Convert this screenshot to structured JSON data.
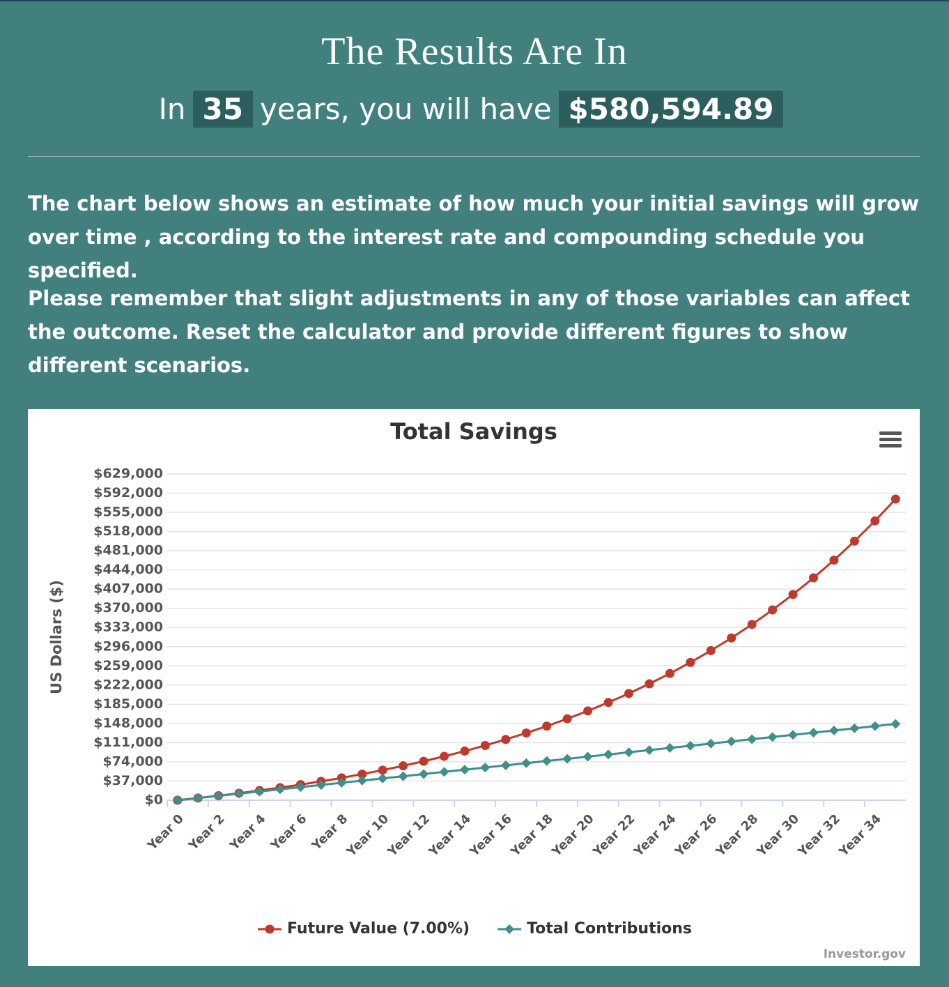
{
  "header": {
    "title": "The Results Are In",
    "summary": {
      "prefix": "In",
      "years": "35",
      "middle": "years, you will have",
      "amount": "$580,594.89"
    }
  },
  "paragraphs": [
    "The chart below shows an estimate of how much your initial savings will grow over time , according to the interest rate and compounding schedule you specified.",
    "Please remember that slight adjustments in any of those variables can affect the outcome. Reset the calculator and provide different figures to show different scenarios."
  ],
  "chart_data": {
    "type": "line",
    "title": "Total Savings",
    "y_label": "US Dollars ($)",
    "credit": "Investor.gov",
    "categories": [
      "Year 0",
      null,
      "Year 2",
      null,
      "Year 4",
      null,
      "Year 6",
      null,
      "Year 8",
      null,
      "Year 10",
      null,
      "Year 12",
      null,
      "Year 14",
      null,
      "Year 16",
      null,
      "Year 18",
      null,
      "Year 20",
      null,
      "Year 22",
      null,
      "Year 24",
      null,
      "Year 26",
      null,
      "Year 28",
      null,
      "Year 30",
      null,
      "Year 32",
      null,
      "Year 34",
      null
    ],
    "series": [
      {
        "name": "Future Value (7.00%)",
        "color": "#bf3a2b",
        "marker": "circle",
        "values": [
          0,
          4200,
          8694,
          13503,
          18648,
          24153,
          30044,
          36347,
          43091,
          50308,
          58029,
          66291,
          75132,
          84591,
          94712,
          105542,
          117130,
          129529,
          142796,
          156992,
          172181,
          188434,
          205824,
          224432,
          244342,
          265646,
          288441,
          312832,
          338930,
          366855,
          396735,
          428707,
          462916,
          499520,
          538687,
          580595
        ]
      },
      {
        "name": "Total Contributions",
        "color": "#3f8f8c",
        "marker": "diamond",
        "values": [
          0,
          4200,
          8400,
          12600,
          16800,
          21000,
          25200,
          29400,
          33600,
          37800,
          42000,
          46200,
          50400,
          54600,
          58800,
          63000,
          67200,
          71400,
          75600,
          79800,
          84000,
          88200,
          92400,
          96600,
          100800,
          105000,
          109200,
          113400,
          117600,
          121800,
          126000,
          130200,
          134400,
          138600,
          142800,
          147000
        ]
      }
    ],
    "ylim": [
      0,
      629000
    ],
    "yticks": [
      {
        "value": 0,
        "label": "$0"
      },
      {
        "value": 37000,
        "label": "$37,000"
      },
      {
        "value": 74000,
        "label": "$74,000"
      },
      {
        "value": 111000,
        "label": "$111,000"
      },
      {
        "value": 148000,
        "label": "$148,000"
      },
      {
        "value": 185000,
        "label": "$185,000"
      },
      {
        "value": 222000,
        "label": "$222,000"
      },
      {
        "value": 259000,
        "label": "$259,000"
      },
      {
        "value": 296000,
        "label": "$296,000"
      },
      {
        "value": 333000,
        "label": "$333,000"
      },
      {
        "value": 370000,
        "label": "$370,000"
      },
      {
        "value": 407000,
        "label": "$407,000"
      },
      {
        "value": 444000,
        "label": "$444,000"
      },
      {
        "value": 481000,
        "label": "$481,000"
      },
      {
        "value": 518000,
        "label": "$518,000"
      },
      {
        "value": 555000,
        "label": "$555,000"
      },
      {
        "value": 592000,
        "label": "$592,000"
      },
      {
        "value": 629000,
        "label": "$629,000"
      }
    ],
    "grid": true,
    "legend": "bottom"
  }
}
